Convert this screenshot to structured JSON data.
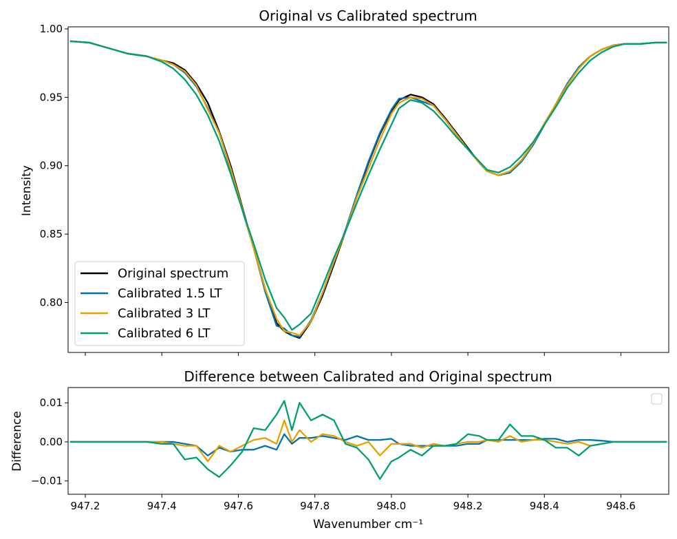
{
  "chart_data": [
    {
      "type": "line",
      "title": "Original vs Calibrated spectrum",
      "xlabel": "",
      "ylabel": "Intensity",
      "xlim": [
        947.155,
        948.725
      ],
      "ylim": [
        0.7635,
        1.0015
      ],
      "xticks": [
        947.2,
        947.4,
        947.6,
        947.8,
        948.0,
        948.2,
        948.4,
        948.6
      ],
      "xticklabels_shown": false,
      "yticks": [
        0.8,
        0.85,
        0.9,
        0.95,
        1.0
      ],
      "yticklabels": [
        "0.80",
        "0.85",
        "0.90",
        "0.95",
        "1.00"
      ],
      "grid": false,
      "legend_position": "lower-left",
      "x": [
        947.16,
        947.21,
        947.26,
        947.31,
        947.36,
        947.4,
        947.43,
        947.46,
        947.49,
        947.52,
        947.55,
        947.58,
        947.61,
        947.64,
        947.67,
        947.7,
        947.72,
        947.74,
        947.76,
        947.79,
        947.82,
        947.85,
        947.88,
        947.91,
        947.94,
        947.97,
        948.0,
        948.02,
        948.05,
        948.08,
        948.11,
        948.14,
        948.17,
        948.2,
        948.23,
        948.25,
        948.28,
        948.31,
        948.34,
        948.37,
        948.4,
        948.43,
        948.46,
        948.49,
        948.52,
        948.55,
        948.58,
        948.61,
        948.65,
        948.69,
        948.72
      ],
      "series": [
        {
          "name": "Original spectrum",
          "color": "#000000",
          "values": [
            0.991,
            0.99,
            0.986,
            0.982,
            0.98,
            0.977,
            0.975,
            0.97,
            0.96,
            0.946,
            0.925,
            0.9,
            0.87,
            0.84,
            0.81,
            0.785,
            0.779,
            0.776,
            0.774,
            0.786,
            0.805,
            0.828,
            0.852,
            0.878,
            0.902,
            0.923,
            0.94,
            0.948,
            0.952,
            0.95,
            0.945,
            0.935,
            0.924,
            0.913,
            0.902,
            0.896,
            0.893,
            0.895,
            0.903,
            0.915,
            0.93,
            0.945,
            0.96,
            0.972,
            0.98,
            0.985,
            0.988,
            0.989,
            0.989,
            0.99,
            0.99
          ]
        },
        {
          "name": "Calibrated 1.5 LT",
          "color": "#0072b2",
          "values": [
            0.991,
            0.99,
            0.986,
            0.982,
            0.98,
            0.977,
            0.974,
            0.968,
            0.958,
            0.942,
            0.924,
            0.897,
            0.868,
            0.84,
            0.808,
            0.783,
            0.781,
            0.776,
            0.775,
            0.787,
            0.807,
            0.83,
            0.853,
            0.879,
            0.903,
            0.924,
            0.941,
            0.949,
            0.95,
            0.947,
            0.944,
            0.934,
            0.923,
            0.912,
            0.902,
            0.896,
            0.893,
            0.895,
            0.903,
            0.915,
            0.93,
            0.945,
            0.96,
            0.972,
            0.98,
            0.985,
            0.988,
            0.989,
            0.989,
            0.99,
            0.99
          ]
        },
        {
          "name": "Calibrated 3 LT",
          "color": "#e69f00",
          "values": [
            0.991,
            0.99,
            0.986,
            0.982,
            0.98,
            0.977,
            0.974,
            0.969,
            0.959,
            0.941,
            0.924,
            0.898,
            0.869,
            0.84,
            0.81,
            0.788,
            0.779,
            0.778,
            0.776,
            0.786,
            0.807,
            0.83,
            0.852,
            0.877,
            0.898,
            0.919,
            0.938,
            0.946,
            0.95,
            0.949,
            0.944,
            0.934,
            0.923,
            0.912,
            0.902,
            0.896,
            0.893,
            0.896,
            0.904,
            0.916,
            0.931,
            0.945,
            0.959,
            0.971,
            0.98,
            0.985,
            0.988,
            0.989,
            0.989,
            0.99,
            0.99
          ]
        },
        {
          "name": "Calibrated 6 LT",
          "color": "#009e73",
          "values": [
            0.991,
            0.99,
            0.986,
            0.982,
            0.98,
            0.976,
            0.971,
            0.963,
            0.952,
            0.937,
            0.918,
            0.894,
            0.868,
            0.843,
            0.817,
            0.796,
            0.789,
            0.78,
            0.784,
            0.792,
            0.812,
            0.833,
            0.852,
            0.873,
            0.893,
            0.912,
            0.93,
            0.942,
            0.948,
            0.946,
            0.94,
            0.931,
            0.921,
            0.912,
            0.903,
            0.897,
            0.895,
            0.899,
            0.907,
            0.917,
            0.93,
            0.943,
            0.957,
            0.968,
            0.977,
            0.983,
            0.987,
            0.989,
            0.989,
            0.99,
            0.99
          ]
        }
      ]
    },
    {
      "type": "line",
      "title": "Difference between Calibrated and Original spectrum",
      "xlabel": "Wavenumber cm⁻¹",
      "ylabel": "Difference",
      "xlim": [
        947.155,
        948.725
      ],
      "ylim": [
        -0.0134,
        0.0139
      ],
      "xticks": [
        947.2,
        947.4,
        947.6,
        947.8,
        948.0,
        948.2,
        948.4,
        948.6
      ],
      "xticklabels": [
        "947.2",
        "947.4",
        "947.6",
        "947.8",
        "948.0",
        "948.2",
        "948.4",
        "948.6"
      ],
      "yticks": [
        -0.01,
        0.0,
        0.01
      ],
      "yticklabels": [
        "−0.01",
        "0.00",
        "0.01"
      ],
      "grid": false,
      "legend_position": "top-right",
      "legend_empty": true,
      "x": [
        947.16,
        947.21,
        947.26,
        947.31,
        947.36,
        947.4,
        947.43,
        947.46,
        947.49,
        947.52,
        947.55,
        947.58,
        947.61,
        947.64,
        947.67,
        947.7,
        947.72,
        947.74,
        947.76,
        947.79,
        947.82,
        947.85,
        947.88,
        947.91,
        947.94,
        947.97,
        948.0,
        948.02,
        948.05,
        948.08,
        948.11,
        948.14,
        948.17,
        948.2,
        948.23,
        948.25,
        948.28,
        948.31,
        948.34,
        948.37,
        948.4,
        948.43,
        948.46,
        948.49,
        948.52,
        948.55,
        948.58,
        948.61,
        948.65,
        948.69,
        948.72
      ],
      "series": [
        {
          "color": "#0072b2",
          "values": [
            0.0,
            0.0,
            0.0,
            0.0,
            0.0,
            0.0,
            0.0,
            -0.0005,
            -0.001,
            -0.0035,
            -0.0015,
            -0.0025,
            -0.002,
            -0.002,
            -0.001,
            -0.002,
            0.002,
            -0.0005,
            0.001,
            0.001,
            0.0015,
            0.001,
            0.0005,
            0.0015,
            0.0005,
            0.0005,
            0.0008,
            -0.0005,
            -0.001,
            -0.001,
            -0.001,
            -0.001,
            -0.001,
            -0.0005,
            -0.0005,
            0.0005,
            0.0005,
            0.0005,
            0.0005,
            0.0005,
            0.0008,
            0.0008,
            0.0,
            0.0005,
            0.0005,
            0.0003,
            0.0,
            0.0,
            0.0,
            0.0,
            0.0
          ]
        },
        {
          "color": "#e69f00",
          "values": [
            0.0,
            0.0,
            0.0,
            0.0,
            0.0,
            0.0,
            -0.0005,
            -0.001,
            -0.001,
            -0.005,
            -0.001,
            -0.0025,
            -0.001,
            0.0005,
            0.001,
            -0.0005,
            0.0055,
            0.0,
            0.003,
            0.0,
            0.002,
            0.0015,
            0.0,
            -0.001,
            0.0,
            -0.0035,
            -0.0005,
            -0.0005,
            -0.0005,
            -0.0015,
            -0.0005,
            -0.001,
            -0.0005,
            0.0,
            0.0,
            0.0005,
            0.0,
            0.0015,
            0.0,
            0.0005,
            0.0005,
            0.0,
            -0.0005,
            0.0,
            -0.001,
            -0.0005,
            0.0,
            0.0,
            0.0,
            0.0,
            0.0
          ]
        },
        {
          "color": "#009e73",
          "values": [
            0.0,
            0.0,
            0.0,
            0.0,
            0.0,
            -0.0005,
            -0.0005,
            -0.0045,
            -0.004,
            -0.007,
            -0.009,
            -0.006,
            -0.0025,
            0.0035,
            0.003,
            0.007,
            0.0105,
            0.003,
            0.01,
            0.0055,
            0.007,
            0.0055,
            -0.0005,
            -0.0015,
            -0.0045,
            -0.0095,
            -0.005,
            -0.004,
            -0.002,
            -0.0035,
            -0.001,
            -0.001,
            -0.0005,
            0.002,
            0.0015,
            0.0005,
            0.0005,
            0.0045,
            0.0015,
            0.0015,
            0.0005,
            -0.0015,
            -0.0015,
            -0.0035,
            -0.001,
            -0.0005,
            0.0,
            0.0,
            0.0,
            0.0,
            0.0
          ]
        }
      ]
    }
  ]
}
